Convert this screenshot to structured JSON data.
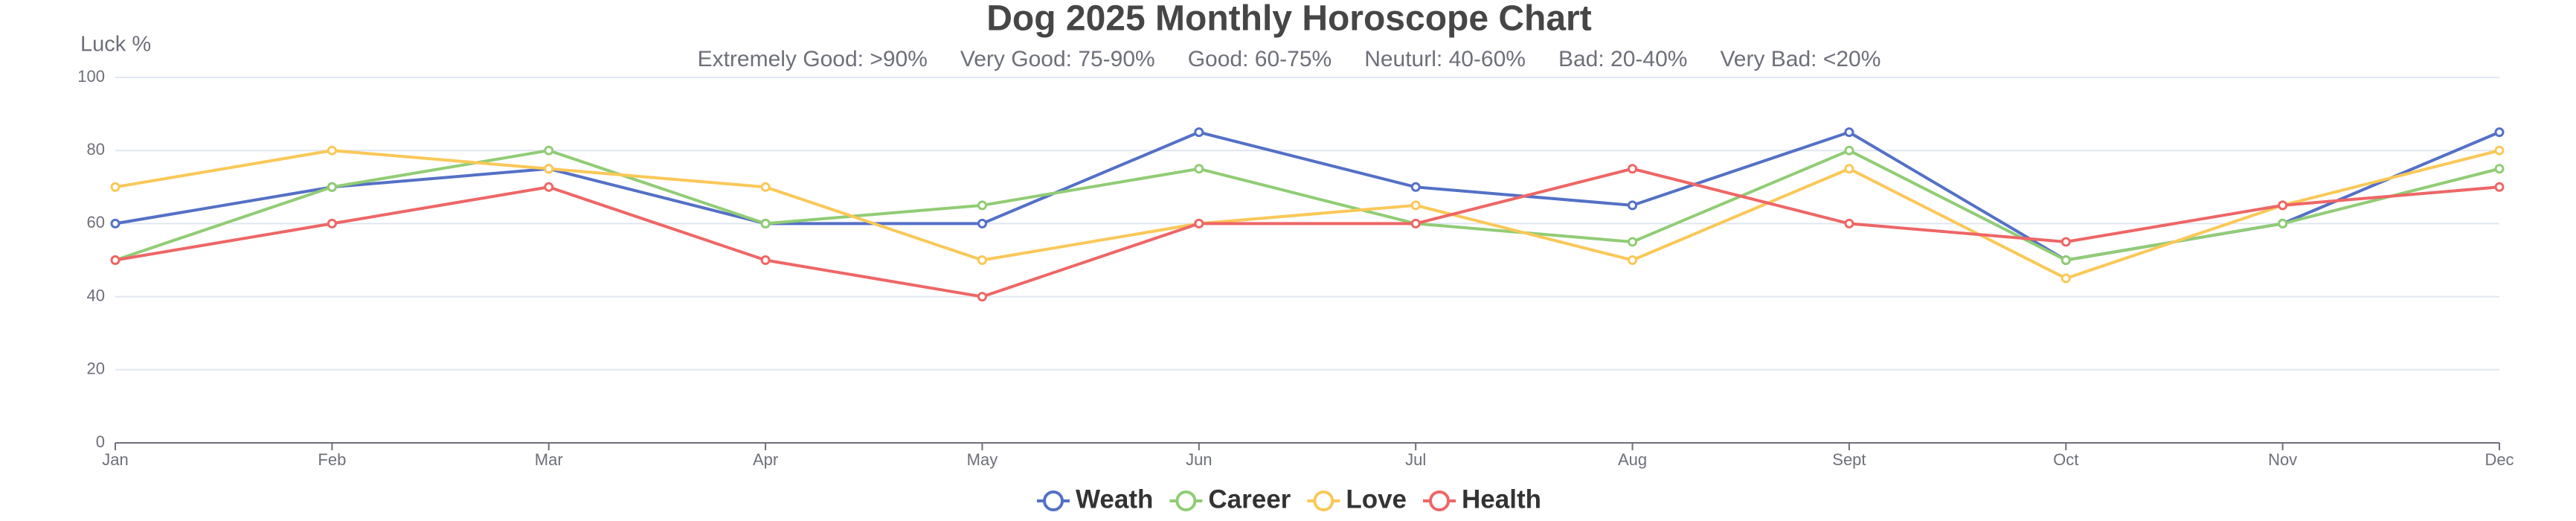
{
  "chart_data": {
    "type": "line",
    "title": "Dog 2025 Monthly Horoscope Chart",
    "subtitle_items": [
      "Extremely Good: >90%",
      "Very Good: 75-90%",
      "Good: 60-75%",
      "Neuturl: 40-60%",
      "Bad: 20-40%",
      "Very Bad: <20%"
    ],
    "y_label": "Luck %",
    "categories": [
      "Jan",
      "Feb",
      "Mar",
      "Apr",
      "May",
      "Jun",
      "Jul",
      "Aug",
      "Sept",
      "Oct",
      "Nov",
      "Dec"
    ],
    "series": [
      {
        "name": "Weath",
        "color": "#5470c6",
        "values": [
          60,
          70,
          75,
          60,
          60,
          85,
          70,
          65,
          85,
          50,
          60,
          85
        ]
      },
      {
        "name": "Career",
        "color": "#91cc75",
        "values": [
          50,
          70,
          80,
          60,
          65,
          75,
          60,
          55,
          80,
          50,
          60,
          75
        ]
      },
      {
        "name": "Love",
        "color": "#fac858",
        "values": [
          70,
          80,
          75,
          70,
          50,
          60,
          65,
          50,
          75,
          45,
          65,
          80
        ]
      },
      {
        "name": "Health",
        "color": "#ee6666",
        "values": [
          50,
          60,
          70,
          50,
          40,
          60,
          60,
          75,
          60,
          55,
          65,
          70
        ]
      }
    ],
    "ylim": [
      0,
      100
    ],
    "yticks": [
      0,
      20,
      40,
      60,
      80,
      100
    ],
    "grid": true
  }
}
